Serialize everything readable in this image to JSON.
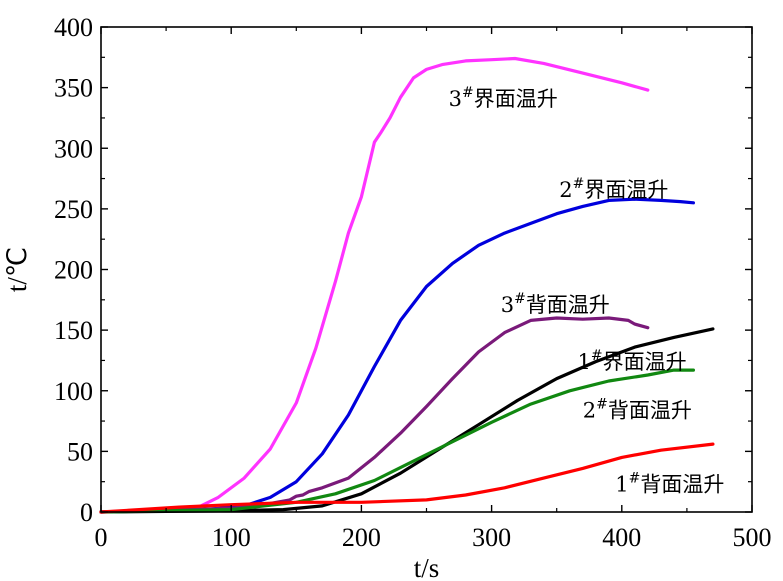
{
  "chart_data": {
    "type": "line",
    "title": "",
    "xlabel": "t/s",
    "ylabel": "t/℃",
    "xlim": [
      0,
      500
    ],
    "ylim": [
      0,
      400
    ],
    "xticks": [
      0,
      100,
      200,
      300,
      400,
      500
    ],
    "yticks": [
      0,
      50,
      100,
      150,
      200,
      250,
      300,
      350,
      400
    ],
    "grid": false,
    "legend": "inline labels",
    "series": [
      {
        "name": "3#界面温升",
        "color": "#ff33ff",
        "x": [
          0,
          50,
          75,
          90,
          110,
          130,
          150,
          165,
          180,
          190,
          200,
          210,
          215,
          222,
          230,
          240,
          250,
          262,
          280,
          300,
          318,
          340,
          370,
          400,
          420
        ],
        "y": [
          0,
          2,
          4,
          12,
          28,
          52,
          90,
          135,
          190,
          230,
          260,
          305,
          313,
          325,
          342,
          358,
          365,
          369,
          372,
          373,
          374,
          370,
          362,
          354,
          348
        ]
      },
      {
        "name": "2#界面温升",
        "color": "#0000dd",
        "x": [
          0,
          80,
          110,
          130,
          150,
          170,
          190,
          210,
          230,
          250,
          270,
          290,
          310,
          330,
          350,
          370,
          390,
          410,
          430,
          445,
          455
        ],
        "y": [
          0,
          2,
          5,
          12,
          25,
          48,
          80,
          120,
          158,
          186,
          205,
          220,
          230,
          238,
          246,
          252,
          257,
          258,
          257,
          256,
          255
        ]
      },
      {
        "name": "3#背面温升",
        "color": "#7a1a7a",
        "x": [
          0,
          100,
          130,
          145,
          150,
          155,
          160,
          170,
          190,
          210,
          230,
          250,
          270,
          290,
          310,
          330,
          350,
          370,
          390,
          405,
          410,
          420
        ],
        "y": [
          0,
          3,
          7,
          10,
          13,
          14,
          17,
          20,
          28,
          45,
          65,
          87,
          110,
          132,
          148,
          158,
          160,
          159,
          160,
          158,
          155,
          152
        ]
      },
      {
        "name": "1#界面温升",
        "color": "#000000",
        "x": [
          0,
          100,
          140,
          170,
          200,
          230,
          260,
          290,
          320,
          350,
          380,
          410,
          440,
          470
        ],
        "y": [
          0,
          1,
          2,
          5,
          15,
          32,
          52,
          72,
          92,
          110,
          124,
          136,
          144,
          151
        ]
      },
      {
        "name": "2#背面温升",
        "color": "#118811",
        "x": [
          0,
          100,
          150,
          180,
          210,
          240,
          270,
          300,
          330,
          360,
          390,
          420,
          440,
          455
        ],
        "y": [
          0,
          2,
          8,
          15,
          26,
          42,
          58,
          74,
          89,
          100,
          108,
          113,
          117,
          117
        ]
      },
      {
        "name": "1#背面温升",
        "color": "#ff0000",
        "x": [
          0,
          60,
          100,
          150,
          200,
          250,
          280,
          310,
          340,
          370,
          400,
          430,
          470
        ],
        "y": [
          0,
          4,
          6,
          8,
          8,
          10,
          14,
          20,
          28,
          36,
          45,
          51,
          56
        ]
      }
    ],
    "annotations": [
      {
        "series": "3#界面温升",
        "base": "3",
        "sup": "#",
        "rest": "界面温升",
        "x": 267,
        "y": 335
      },
      {
        "series": "2#界面温升",
        "base": "2",
        "sup": "#",
        "rest": "界面温升",
        "x": 352,
        "y": 260
      },
      {
        "series": "3#背面温升",
        "base": "3",
        "sup": "#",
        "rest": "背面温升",
        "x": 307,
        "y": 165
      },
      {
        "series": "1#界面温升",
        "base": "1",
        "sup": "#",
        "rest": "界面温升",
        "x": 366,
        "y": 118
      },
      {
        "series": "2#背面温升",
        "base": "2",
        "sup": "#",
        "rest": "背面温升",
        "x": 370,
        "y": 78
      },
      {
        "series": "1#背面温升",
        "base": "1",
        "sup": "#",
        "rest": "背面温升",
        "x": 395,
        "y": 17
      }
    ]
  }
}
